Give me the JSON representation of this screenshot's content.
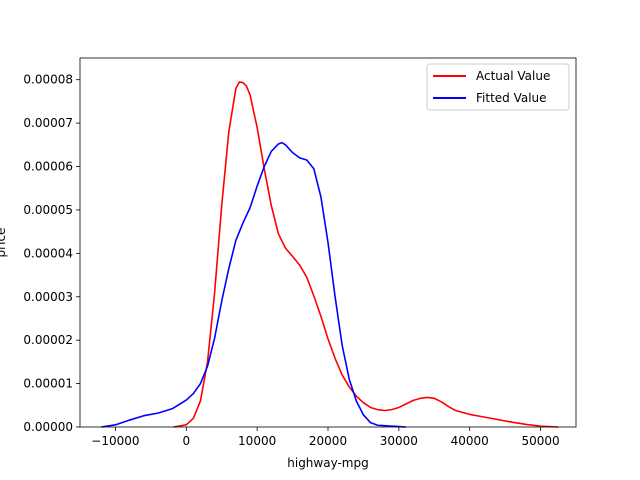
{
  "chart_data": {
    "type": "line",
    "title": "",
    "xlabel": "highway-mpg",
    "ylabel": "price",
    "xlim": [
      -15000,
      55000
    ],
    "ylim": [
      0,
      8.5e-05
    ],
    "x_ticks": [
      -10000,
      0,
      10000,
      20000,
      30000,
      40000,
      50000
    ],
    "x_tick_labels": [
      "−10000",
      "0",
      "10000",
      "20000",
      "30000",
      "40000",
      "50000"
    ],
    "y_ticks": [
      0,
      1e-05,
      2e-05,
      3e-05,
      4e-05,
      5e-05,
      6e-05,
      7e-05,
      8e-05
    ],
    "y_tick_labels": [
      "0.00000",
      "0.00001",
      "0.00002",
      "0.00003",
      "0.00004",
      "0.00005",
      "0.00006",
      "0.00007",
      "0.00008"
    ],
    "grid": false,
    "legend": "top-right",
    "series": [
      {
        "name": "Actual Value",
        "color": "#ff0000",
        "x": [
          -1800,
          0,
          1000,
          2000,
          3000,
          4000,
          5000,
          6000,
          7000,
          7500,
          8000,
          8500,
          9000,
          10000,
          11000,
          12000,
          13000,
          14000,
          15000,
          16000,
          17000,
          18000,
          19000,
          20000,
          21000,
          22000,
          23000,
          24000,
          25000,
          26000,
          27000,
          28000,
          29000,
          30000,
          31000,
          32000,
          33000,
          34000,
          35000,
          36000,
          37000,
          38000,
          40000,
          42000,
          44000,
          46000,
          48000,
          50000,
          52500
        ],
        "y": [
          0.0,
          5e-07,
          2e-06,
          6e-06,
          1.5e-05,
          3.1e-05,
          5.1e-05,
          6.8e-05,
          7.8e-05,
          7.95e-05,
          7.93e-05,
          7.85e-05,
          7.65e-05,
          6.9e-05,
          5.95e-05,
          5.1e-05,
          4.45e-05,
          4.12e-05,
          3.93e-05,
          3.73e-05,
          3.45e-05,
          3.02e-05,
          2.55e-05,
          2.03e-05,
          1.58e-05,
          1.2e-05,
          9.2e-06,
          7.1e-06,
          5.6e-06,
          4.5e-06,
          4e-06,
          3.8e-06,
          4e-06,
          4.5e-06,
          5.3e-06,
          6.1e-06,
          6.6e-06,
          6.8e-06,
          6.6e-06,
          5.8e-06,
          4.7e-06,
          3.8e-06,
          2.9e-06,
          2.3e-06,
          1.7e-06,
          1.1e-06,
          6e-07,
          2e-07,
          0.0
        ]
      },
      {
        "name": "Fitted Value",
        "color": "#0000ff",
        "x": [
          -12000,
          -10000,
          -8000,
          -6000,
          -4000,
          -2000,
          0,
          1000,
          2000,
          3000,
          4000,
          5000,
          6000,
          7000,
          8000,
          9000,
          10000,
          11000,
          12000,
          13000,
          13500,
          14000,
          15000,
          16000,
          17000,
          18000,
          19000,
          20000,
          21000,
          22000,
          23000,
          24000,
          25000,
          26000,
          27000,
          28000,
          29000,
          30000,
          31000
        ],
        "y": [
          0.0,
          5e-07,
          1.6e-06,
          2.6e-06,
          3.2e-06,
          4.2e-06,
          6.2e-06,
          7.7e-06,
          1e-05,
          1.4e-05,
          2.05e-05,
          2.9e-05,
          3.65e-05,
          4.3e-05,
          4.7e-05,
          5.05e-05,
          5.55e-05,
          6e-05,
          6.35e-05,
          6.52e-05,
          6.55e-05,
          6.5e-05,
          6.32e-05,
          6.2e-05,
          6.15e-05,
          5.95e-05,
          5.3e-05,
          4.25e-05,
          3e-05,
          1.88e-05,
          1.1e-05,
          6e-06,
          2.8e-06,
          1e-06,
          4e-07,
          3e-07,
          2e-07,
          1e-07,
          0.0
        ]
      }
    ]
  }
}
